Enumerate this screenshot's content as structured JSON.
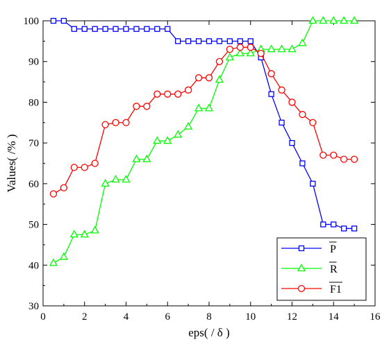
{
  "chart_data": {
    "type": "line",
    "xlabel": "eps( / δ )",
    "ylabel": "Values( /% )",
    "xlim": [
      0,
      16
    ],
    "ylim": [
      30,
      100
    ],
    "xticks": [
      0,
      2,
      4,
      6,
      8,
      10,
      12,
      14,
      16
    ],
    "yticks": [
      30,
      40,
      50,
      60,
      70,
      80,
      90,
      100
    ],
    "grid": false,
    "legend_position": "bottom-right",
    "x": [
      0.5,
      1,
      1.5,
      2,
      2.5,
      3,
      3.5,
      4,
      4.5,
      5,
      5.5,
      6,
      6.5,
      7,
      7.5,
      8,
      8.5,
      9,
      9.5,
      10,
      10.5,
      11,
      11.5,
      12,
      12.5,
      13,
      13.5,
      14,
      14.5,
      15
    ],
    "series": [
      {
        "name": "P",
        "color": "#0000ff",
        "marker": "square",
        "values": [
          100,
          100,
          98,
          98,
          98,
          98,
          98,
          98,
          98,
          98,
          98,
          98,
          95,
          95,
          95,
          95,
          95,
          95,
          95,
          95,
          91,
          82,
          75,
          70,
          65,
          60,
          50,
          50,
          49,
          49
        ]
      },
      {
        "name": "R",
        "color": "#00ff00",
        "marker": "triangle",
        "values": [
          40.5,
          42,
          47.5,
          47.5,
          48.5,
          60,
          61,
          61,
          66,
          66,
          70.5,
          70.5,
          72,
          74,
          78.5,
          78.5,
          85.5,
          91,
          92,
          92,
          93,
          93,
          93,
          93,
          94.5,
          100,
          100,
          100,
          100,
          100
        ]
      },
      {
        "name": "F1",
        "color": "#ff0000",
        "marker": "circle",
        "values": [
          57.5,
          59,
          64,
          64,
          65,
          74.5,
          75,
          75,
          79,
          79,
          82,
          82,
          82,
          83,
          86,
          86,
          90,
          93,
          93.5,
          93.5,
          92,
          87,
          83,
          80,
          77,
          75,
          67,
          67,
          66,
          66
        ]
      }
    ]
  }
}
